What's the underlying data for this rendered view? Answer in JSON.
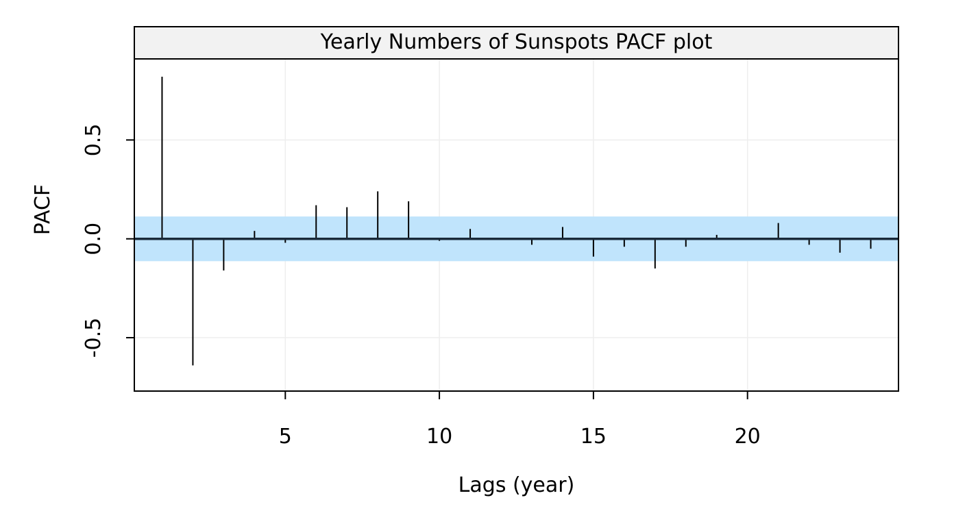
{
  "chart_data": {
    "type": "bar",
    "title": "Yearly Numbers of Sunspots PACF plot",
    "xlabel": "Lags (year)",
    "ylabel": "PACF",
    "x": [
      1,
      2,
      3,
      4,
      5,
      6,
      7,
      8,
      9,
      10,
      11,
      12,
      13,
      14,
      15,
      16,
      17,
      18,
      19,
      20,
      21,
      22,
      23,
      24
    ],
    "values": [
      0.82,
      -0.64,
      -0.16,
      0.04,
      -0.02,
      0.17,
      0.16,
      0.24,
      0.19,
      -0.01,
      0.05,
      0.0,
      -0.03,
      0.06,
      -0.09,
      -0.04,
      -0.15,
      -0.04,
      0.02,
      0.0,
      0.08,
      -0.03,
      -0.07,
      -0.05
    ],
    "confidence_band": [
      -0.113,
      0.113
    ],
    "xlim": [
      0.1,
      24.9
    ],
    "ylim": [
      -0.77,
      0.91
    ],
    "x_ticks": [
      5,
      10,
      15,
      20
    ],
    "x_tick_labels": [
      "5",
      "10",
      "15",
      "20"
    ],
    "y_ticks": [
      -0.5,
      0.0,
      0.5
    ],
    "y_tick_labels": [
      "-0.5",
      "0.0",
      "0.5"
    ],
    "grid": true,
    "colors": {
      "band": "#c0e4fc",
      "bars": "#000000",
      "zero_line": "#1a2a3a",
      "grid": "#eeeeee",
      "strip": "#f2f2f2"
    }
  }
}
